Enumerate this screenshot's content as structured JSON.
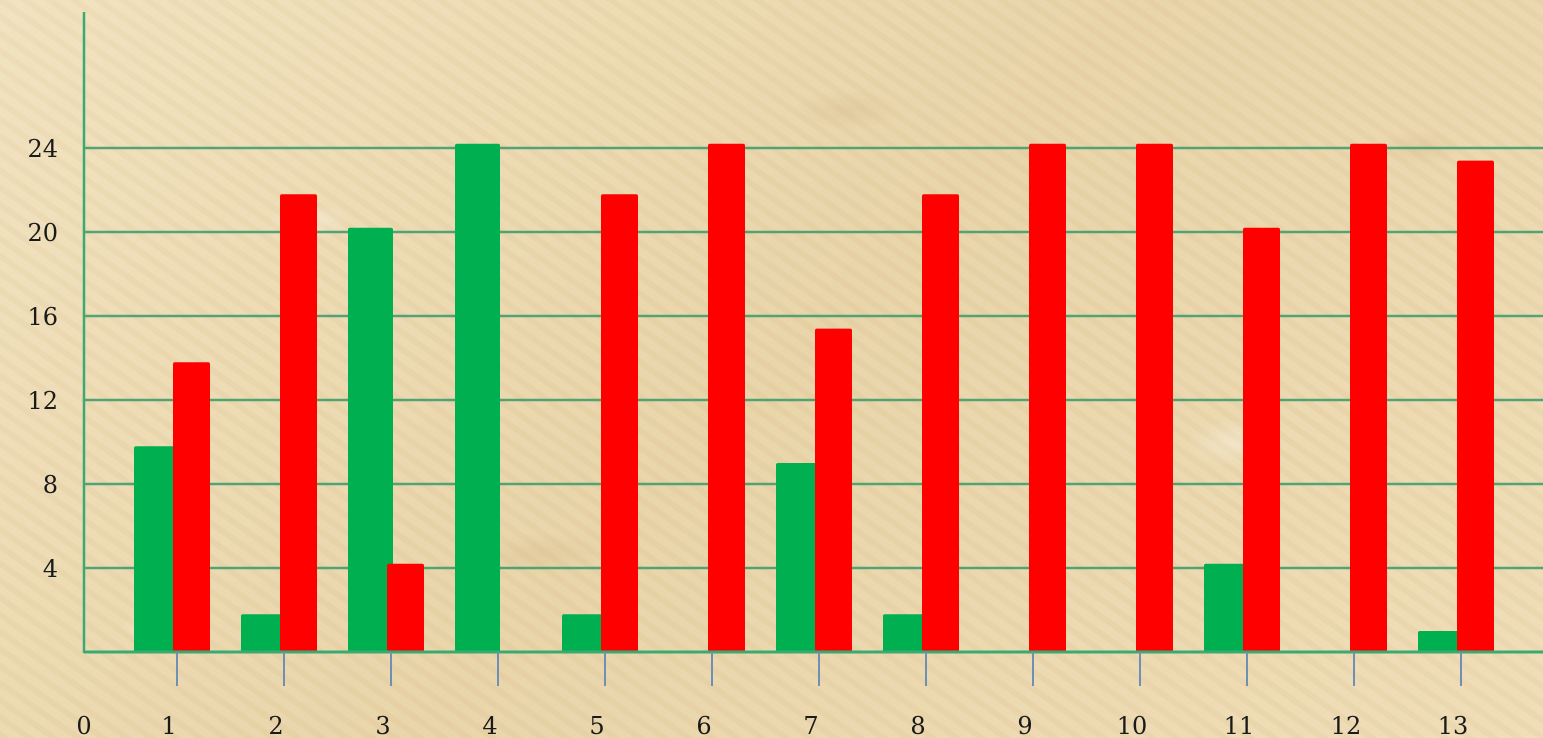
{
  "chart_data": {
    "type": "bar",
    "categories": [
      "1",
      "2",
      "3",
      "4",
      "5",
      "6",
      "7",
      "8",
      "9",
      "10",
      "11",
      "12",
      "13"
    ],
    "x_tick_labels": [
      "0",
      "1",
      "2",
      "3",
      "4",
      "5",
      "6",
      "7",
      "8",
      "9",
      "10",
      "11",
      "12",
      "13"
    ],
    "y_tick_labels": [
      "4",
      "8",
      "12",
      "16",
      "20",
      "24"
    ],
    "series": [
      {
        "color": "#00b050",
        "values": [
          9.8,
          1.8,
          20.2,
          24.2,
          1.8,
          0,
          9.0,
          1.8,
          0,
          0,
          4.2,
          0,
          1.0
        ]
      },
      {
        "color": "#ff0000",
        "values": [
          13.8,
          21.8,
          4.2,
          0,
          21.8,
          24.2,
          15.4,
          21.8,
          24.2,
          24.2,
          20.2,
          24.2,
          23.4
        ]
      }
    ],
    "ylim": [
      0,
      30
    ],
    "y_ticks": [
      4,
      8,
      12,
      16,
      20,
      24
    ],
    "grid": true,
    "grid_color": "#3a9a6a",
    "axis_color": "#3aaa70"
  }
}
